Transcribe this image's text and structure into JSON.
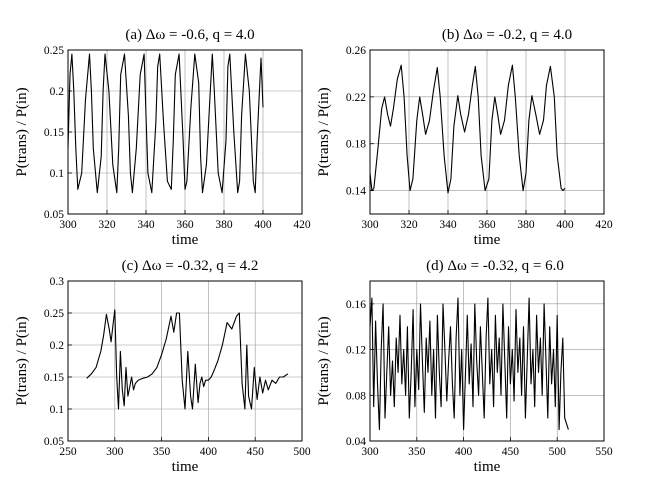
{
  "chart_data": [
    {
      "type": "line",
      "title": "(a) Δω = -0.6,  q = 4.0",
      "xlabel": "time",
      "ylabel": "P(trans) / P(in)",
      "xlim": [
        300,
        420
      ],
      "ylim": [
        0.05,
        0.25
      ],
      "xticks": [
        300,
        320,
        340,
        360,
        380,
        400,
        420
      ],
      "yticks": [
        0.05,
        0.1,
        0.15,
        0.2,
        0.25
      ],
      "ytick_labels": [
        "0.05",
        "0.1",
        "0.15",
        "0.2",
        "0.25"
      ],
      "grid": true,
      "series": [
        {
          "name": "P(trans)/P(in)",
          "x": [
            300,
            301,
            302,
            303,
            304,
            305,
            307,
            309,
            311,
            312,
            313,
            315,
            317,
            318,
            319,
            321,
            323,
            325,
            326,
            327,
            329,
            331,
            332,
            333,
            335,
            337,
            339,
            340,
            341,
            343,
            345,
            346,
            347,
            349,
            351,
            353,
            354,
            355,
            357,
            359,
            360,
            361,
            363,
            365,
            367,
            368,
            369,
            371,
            373,
            374,
            375,
            377,
            379,
            381,
            382,
            383,
            385,
            387,
            388,
            389,
            391,
            393,
            395,
            396,
            397,
            399,
            400
          ],
          "y": [
            0.13,
            0.22,
            0.245,
            0.2,
            0.13,
            0.08,
            0.1,
            0.19,
            0.245,
            0.2,
            0.13,
            0.076,
            0.12,
            0.2,
            0.245,
            0.2,
            0.11,
            0.076,
            0.13,
            0.22,
            0.245,
            0.17,
            0.1,
            0.076,
            0.13,
            0.22,
            0.245,
            0.17,
            0.1,
            0.076,
            0.16,
            0.23,
            0.245,
            0.16,
            0.09,
            0.08,
            0.14,
            0.22,
            0.245,
            0.14,
            0.08,
            0.09,
            0.18,
            0.245,
            0.21,
            0.12,
            0.076,
            0.11,
            0.2,
            0.245,
            0.2,
            0.1,
            0.076,
            0.14,
            0.23,
            0.245,
            0.15,
            0.076,
            0.09,
            0.17,
            0.245,
            0.2,
            0.09,
            0.076,
            0.14,
            0.24,
            0.18
          ]
        }
      ]
    },
    {
      "type": "line",
      "title": "(b) Δω = -0.2,  q = 4.0",
      "xlabel": "time",
      "ylabel": "P(trans) / P(in)",
      "xlim": [
        300,
        420
      ],
      "ylim": [
        0.12,
        0.26
      ],
      "xticks": [
        300,
        320,
        340,
        360,
        380,
        400,
        420
      ],
      "yticks": [
        0.14,
        0.18,
        0.22,
        0.26
      ],
      "ytick_labels": [
        "0.14",
        "0.18",
        "0.22",
        "0.26"
      ],
      "grid": true,
      "series": [
        {
          "name": "P(trans)/P(in)",
          "x": [
            300,
            301,
            302,
            304,
            306,
            307.5,
            309,
            310.5,
            312,
            314,
            316,
            317.5,
            319,
            320.5,
            322,
            324,
            325.5,
            327,
            328.5,
            330.5,
            332.5,
            334.5,
            336,
            338,
            340,
            341.5,
            343,
            345,
            346.5,
            348.5,
            350.5,
            352.5,
            354,
            355.5,
            357,
            359,
            361,
            362.5,
            364,
            365.5,
            367,
            369,
            371,
            373,
            374.5,
            376.5,
            378.5,
            380,
            381.5,
            383,
            385,
            387,
            389,
            390.5,
            392.5,
            394.5,
            396,
            398,
            399,
            400
          ],
          "y": [
            0.155,
            0.14,
            0.142,
            0.175,
            0.21,
            0.22,
            0.205,
            0.195,
            0.21,
            0.235,
            0.247,
            0.22,
            0.17,
            0.14,
            0.15,
            0.2,
            0.22,
            0.205,
            0.188,
            0.2,
            0.225,
            0.245,
            0.22,
            0.17,
            0.138,
            0.15,
            0.195,
            0.221,
            0.205,
            0.19,
            0.205,
            0.23,
            0.246,
            0.22,
            0.17,
            0.14,
            0.15,
            0.2,
            0.22,
            0.205,
            0.188,
            0.2,
            0.23,
            0.247,
            0.22,
            0.17,
            0.14,
            0.155,
            0.2,
            0.221,
            0.205,
            0.188,
            0.2,
            0.23,
            0.246,
            0.22,
            0.17,
            0.142,
            0.14,
            0.142
          ]
        }
      ]
    },
    {
      "type": "line",
      "title": "(c) Δω = -0.32,  q = 4.2",
      "xlabel": "time",
      "ylabel": "P(trans) / P(in)",
      "xlim": [
        250,
        500
      ],
      "ylim": [
        0.05,
        0.3
      ],
      "xticks": [
        250,
        300,
        350,
        400,
        450,
        500
      ],
      "yticks": [
        0.05,
        0.1,
        0.15,
        0.2,
        0.25,
        0.3
      ],
      "ytick_labels": [
        "0.05",
        "0.1",
        "0.15",
        "0.2",
        "0.25",
        "0.3"
      ],
      "grid": true,
      "series": [
        {
          "name": "P(trans)/P(in)",
          "x": [
            270,
            275,
            280,
            285,
            288,
            291,
            294,
            296,
            298,
            300,
            302,
            304,
            306,
            308,
            310,
            312,
            314,
            316,
            318,
            320,
            322,
            325,
            330,
            335,
            340,
            345,
            350,
            355,
            360,
            363,
            366,
            369,
            372,
            375,
            378,
            381,
            383,
            386,
            389,
            391,
            393,
            395,
            397,
            400,
            403,
            406,
            410,
            415,
            420,
            425,
            430,
            433,
            436,
            439,
            441,
            443,
            446,
            449,
            452,
            455,
            458,
            461,
            464,
            468,
            472,
            476,
            480,
            485
          ],
          "y": [
            0.148,
            0.155,
            0.165,
            0.19,
            0.215,
            0.248,
            0.225,
            0.205,
            0.23,
            0.255,
            0.15,
            0.1,
            0.19,
            0.13,
            0.105,
            0.165,
            0.12,
            0.135,
            0.15,
            0.13,
            0.14,
            0.145,
            0.148,
            0.15,
            0.155,
            0.165,
            0.185,
            0.21,
            0.245,
            0.22,
            0.25,
            0.25,
            0.145,
            0.1,
            0.19,
            0.12,
            0.1,
            0.17,
            0.11,
            0.14,
            0.15,
            0.135,
            0.145,
            0.145,
            0.15,
            0.16,
            0.175,
            0.2,
            0.235,
            0.225,
            0.245,
            0.25,
            0.14,
            0.1,
            0.2,
            0.12,
            0.1,
            0.165,
            0.115,
            0.15,
            0.125,
            0.145,
            0.13,
            0.145,
            0.14,
            0.15,
            0.15,
            0.155
          ]
        }
      ]
    },
    {
      "type": "line",
      "title": "(d) Δω = -0.32,  q = 6.0",
      "xlabel": "time",
      "ylabel": "P(trans) / P(in)",
      "xlim": [
        300,
        550
      ],
      "ylim": [
        0.04,
        0.18
      ],
      "xticks": [
        300,
        350,
        400,
        450,
        500,
        550
      ],
      "yticks": [
        0.04,
        0.08,
        0.12,
        0.16
      ],
      "ytick_labels": [
        "0.04",
        "0.08",
        "0.12",
        "0.16"
      ],
      "grid": true,
      "series": [
        {
          "name": "P(trans)/P(in)",
          "x": [
            300,
            302,
            304,
            306,
            308,
            310,
            312,
            314,
            316,
            318,
            320,
            322,
            324,
            326,
            328,
            330,
            332,
            334,
            336,
            338,
            340,
            342,
            344,
            346,
            348,
            350,
            352,
            354,
            356,
            358,
            360,
            362,
            364,
            366,
            368,
            370,
            372,
            374,
            376,
            378,
            380,
            382,
            384,
            386,
            388,
            390,
            392,
            394,
            396,
            398,
            400,
            402,
            404,
            406,
            408,
            410,
            412,
            414,
            416,
            418,
            420,
            422,
            424,
            426,
            428,
            430,
            432,
            434,
            436,
            438,
            440,
            442,
            444,
            446,
            448,
            450,
            452,
            454,
            456,
            458,
            460,
            462,
            464,
            466,
            468,
            470,
            472,
            474,
            476,
            478,
            480,
            482,
            484,
            486,
            488,
            490,
            492,
            494,
            496,
            498,
            500,
            502,
            504,
            506,
            508,
            510,
            512
          ],
          "y": [
            0.14,
            0.165,
            0.07,
            0.145,
            0.09,
            0.05,
            0.12,
            0.16,
            0.06,
            0.1,
            0.14,
            0.08,
            0.11,
            0.07,
            0.13,
            0.1,
            0.15,
            0.09,
            0.12,
            0.08,
            0.14,
            0.06,
            0.1,
            0.155,
            0.07,
            0.12,
            0.085,
            0.16,
            0.11,
            0.065,
            0.13,
            0.1,
            0.145,
            0.08,
            0.12,
            0.06,
            0.15,
            0.1,
            0.07,
            0.16,
            0.12,
            0.075,
            0.11,
            0.14,
            0.09,
            0.06,
            0.13,
            0.165,
            0.08,
            0.12,
            0.05,
            0.1,
            0.15,
            0.09,
            0.125,
            0.07,
            0.16,
            0.11,
            0.08,
            0.14,
            0.1,
            0.06,
            0.13,
            0.165,
            0.09,
            0.12,
            0.07,
            0.15,
            0.1,
            0.13,
            0.08,
            0.16,
            0.11,
            0.06,
            0.14,
            0.09,
            0.12,
            0.075,
            0.155,
            0.1,
            0.13,
            0.08,
            0.14,
            0.06,
            0.11,
            0.165,
            0.09,
            0.12,
            0.07,
            0.15,
            0.1,
            0.13,
            0.08,
            0.16,
            0.11,
            0.06,
            0.14,
            0.09,
            0.12,
            0.07,
            0.15,
            0.05,
            0.1,
            0.13,
            0.06,
            0.055,
            0.05
          ]
        }
      ]
    }
  ]
}
